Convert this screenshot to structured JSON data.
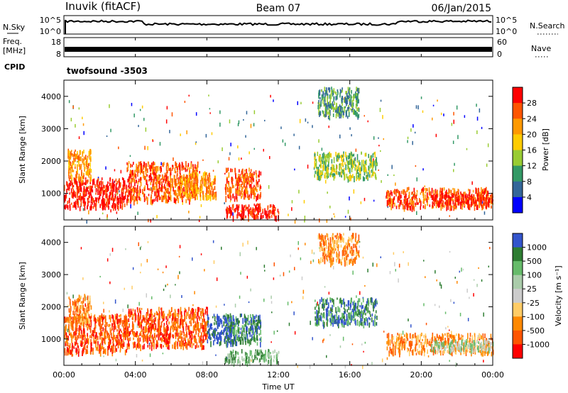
{
  "header": {
    "station": "Inuvik (fitACF)",
    "beam": "Beam 07",
    "date": "06/Jan/2015"
  },
  "noise_panel": {
    "left_label": "N.Sky",
    "left_ticks": [
      "10^5",
      "10^0"
    ],
    "right_label": "N.Search",
    "right_ticks": [
      "10^5",
      "10^0"
    ]
  },
  "freq_panel": {
    "left_label_1": "Freq.",
    "left_label_2": "[MHz]",
    "left_ticks": [
      "18",
      "8"
    ],
    "right_label": "Nave",
    "right_ticks": [
      "60",
      "0"
    ]
  },
  "cpid_panel": {
    "label": "CPID",
    "value": "twofsound  -3503"
  },
  "time_axis": {
    "label": "Time UT",
    "ticks": [
      "00:00",
      "04:00",
      "08:00",
      "12:00",
      "16:00",
      "20:00",
      "00:00"
    ]
  },
  "chart_data": [
    {
      "type": "heatmap",
      "name": "power",
      "ylabel": "Slant Range [km]",
      "y_ticks": [
        1000,
        2000,
        3000,
        4000
      ],
      "ylim": [
        180,
        4500
      ],
      "xlim_hours": [
        0,
        24
      ],
      "colorbar": {
        "label": "Power [dB]",
        "ticks": [
          "28",
          "24",
          "20",
          "16",
          "12",
          "8",
          "4"
        ],
        "colors": [
          "#ff0000",
          "#ff5500",
          "#ff9900",
          "#ffcc00",
          "#99cc33",
          "#339966",
          "#336699",
          "#0000ff"
        ]
      },
      "regions": [
        {
          "t": [
            0.0,
            3.5
          ],
          "r": [
            600,
            1500
          ],
          "level": 0
        },
        {
          "t": [
            0.2,
            1.5
          ],
          "r": [
            1500,
            2400
          ],
          "level": 2
        },
        {
          "t": [
            3.5,
            7.5
          ],
          "r": [
            800,
            2000
          ],
          "level": 1
        },
        {
          "t": [
            6.5,
            8.5
          ],
          "r": [
            900,
            1700
          ],
          "level": 2
        },
        {
          "t": [
            9.0,
            11.0
          ],
          "r": [
            900,
            1800
          ],
          "level": 1
        },
        {
          "t": [
            9.0,
            12.0
          ],
          "r": [
            300,
            700
          ],
          "level": 0
        },
        {
          "t": [
            14.0,
            17.5
          ],
          "r": [
            1500,
            2300
          ],
          "level": 4
        },
        {
          "t": [
            14.2,
            16.5
          ],
          "r": [
            3400,
            4300
          ],
          "level": 5
        },
        {
          "t": [
            18.0,
            24.0
          ],
          "r": [
            600,
            1200
          ],
          "level": 1
        },
        {
          "t": [
            20.5,
            24.0
          ],
          "r": [
            700,
            1000
          ],
          "level": 0
        }
      ]
    },
    {
      "type": "heatmap",
      "name": "velocity",
      "ylabel": "Slant Range [km]",
      "y_ticks": [
        1000,
        2000,
        3000,
        4000
      ],
      "ylim": [
        180,
        4500
      ],
      "xlim_hours": [
        0,
        24
      ],
      "colorbar": {
        "label": "Velocity [m s⁻¹]",
        "ticks": [
          "1000",
          "500",
          "100",
          "25",
          "-25",
          "-100",
          "-500",
          "-1000"
        ],
        "colors": [
          "#3355cc",
          "#2e7d32",
          "#66bb6a",
          "#aaccaa",
          "#cccccc",
          "#ffcc66",
          "#ff8800",
          "#ff5500",
          "#ff0000"
        ]
      },
      "regions": [
        {
          "t": [
            0.0,
            3.5
          ],
          "r": [
            600,
            1800
          ],
          "level": 7
        },
        {
          "t": [
            0.2,
            1.5
          ],
          "r": [
            1500,
            2400
          ],
          "level": 6
        },
        {
          "t": [
            3.5,
            8.0
          ],
          "r": [
            800,
            2000
          ],
          "level": 7
        },
        {
          "t": [
            8.0,
            9.5
          ],
          "r": [
            900,
            1800
          ],
          "level": 0
        },
        {
          "t": [
            9.0,
            11.0
          ],
          "r": [
            900,
            1800
          ],
          "level": 1
        },
        {
          "t": [
            9.0,
            12.0
          ],
          "r": [
            300,
            700
          ],
          "level": 2
        },
        {
          "t": [
            14.0,
            17.5
          ],
          "r": [
            1500,
            2300
          ],
          "level": 1
        },
        {
          "t": [
            14.2,
            16.5
          ],
          "r": [
            3400,
            4300
          ],
          "level": 6
        },
        {
          "t": [
            18.0,
            24.0
          ],
          "r": [
            600,
            1200
          ],
          "level": 6
        },
        {
          "t": [
            20.5,
            24.0
          ],
          "r": [
            700,
            1000
          ],
          "level": 3
        }
      ]
    }
  ]
}
